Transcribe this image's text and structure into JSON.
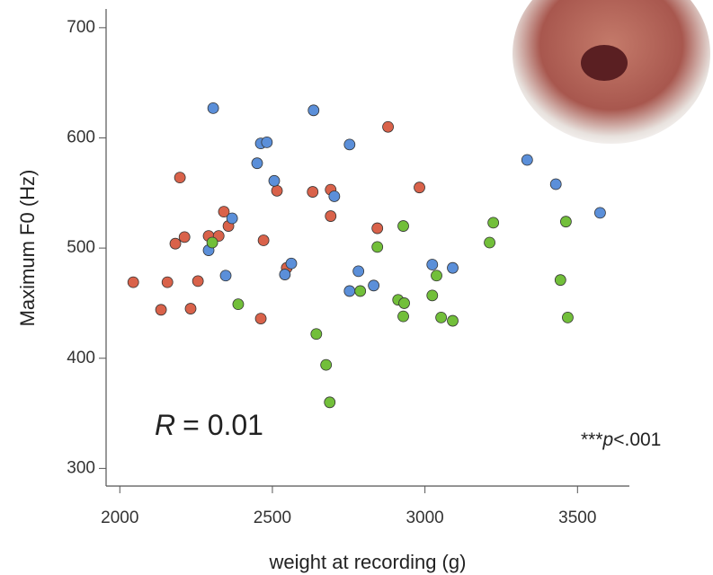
{
  "chart_data": {
    "type": "scatter",
    "xlabel": "weight at recording (g)",
    "ylabel": "Maximum F0 (Hz)",
    "xlim": [
      1955,
      3670
    ],
    "ylim": [
      284,
      717
    ],
    "xticks": [
      2000,
      2500,
      3000,
      3500
    ],
    "yticks": [
      300,
      400,
      500,
      600,
      700
    ],
    "grid": false,
    "annotations": [
      "R",
      "= 0.01",
      "***",
      "p",
      "<.001"
    ],
    "series": [
      {
        "color": "#d9624a",
        "x": [
          2044,
          2135,
          2156,
          2182,
          2197,
          2212,
          2232,
          2256,
          2291,
          2324,
          2341,
          2356,
          2471,
          2462,
          2515,
          2547,
          2632,
          2691,
          2691,
          2844,
          2879,
          2982
        ],
        "values": [
          469,
          444,
          469,
          504,
          564,
          510,
          445,
          470,
          511,
          511,
          533,
          520,
          507,
          436,
          552,
          482,
          551,
          553,
          529,
          518,
          610,
          555
        ]
      },
      {
        "color": "#5b8fd9",
        "x": [
          2306,
          2291,
          2347,
          2368,
          2450,
          2462,
          2482,
          2506,
          2541,
          2562,
          2635,
          2703,
          2753,
          2753,
          2782,
          2832,
          3024,
          3091,
          3335,
          3429,
          3574
        ],
        "values": [
          627,
          498,
          475,
          527,
          577,
          595,
          596,
          561,
          476,
          486,
          625,
          547,
          594,
          461,
          479,
          466,
          485,
          482,
          580,
          558,
          532
        ]
      },
      {
        "color": "#72bf3a",
        "x": [
          2303,
          2388,
          2644,
          2676,
          2688,
          2788,
          2844,
          2912,
          2932,
          2929,
          2929,
          3024,
          3038,
          3053,
          3091,
          3212,
          3224,
          3444,
          3462,
          3468
        ],
        "values": [
          505,
          449,
          422,
          394,
          360,
          461,
          501,
          453,
          450,
          520,
          438,
          457,
          475,
          437,
          434,
          505,
          523,
          471,
          524,
          437
        ]
      }
    ]
  }
}
